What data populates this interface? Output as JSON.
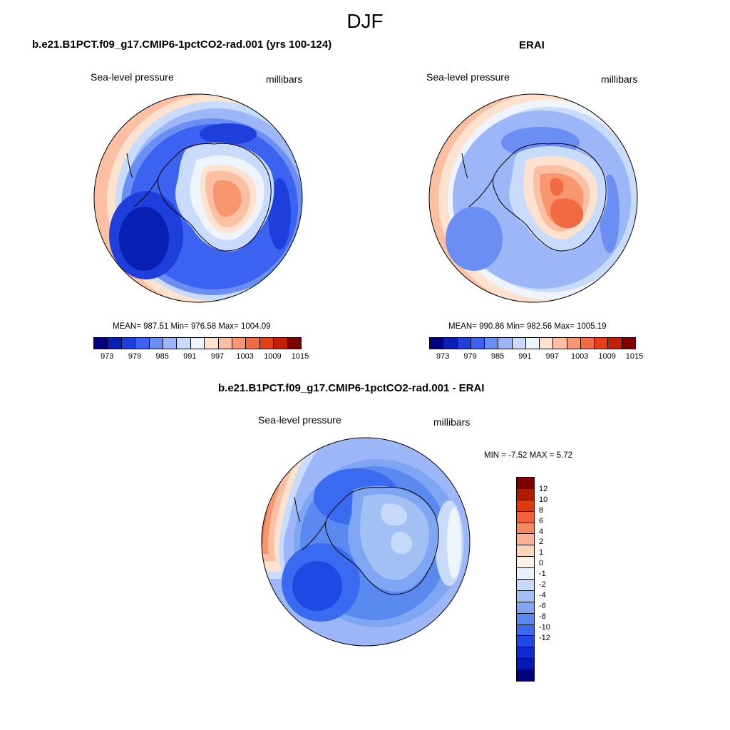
{
  "season": "DJF",
  "panels": [
    {
      "id": "model",
      "title": "b.e21.B1PCT.f09_g17.CMIP6-1pctCO2-rad.001 (yrs 100-124)",
      "left_label": "Sea-level pressure",
      "right_label": "millibars",
      "stats": "MEAN= 987.51  Min= 976.58  Max= 1004.09"
    },
    {
      "id": "obs",
      "title": "ERAI",
      "left_label": "Sea-level pressure",
      "right_label": "millibars",
      "stats": "MEAN= 990.86  Min= 982.56  Max= 1005.19"
    },
    {
      "id": "diff",
      "title": "b.e21.B1PCT.f09_g17.CMIP6-1pctCO2-rad.001 - ERAI",
      "left_label": "Sea-level pressure",
      "right_label": "millibars",
      "stats": "MIN =  -7.52 MAX =   5.72"
    }
  ],
  "abs_colorbar": {
    "colors": [
      "#00007f",
      "#0a1fb4",
      "#1f3fdc",
      "#3b62f0",
      "#6b8ef5",
      "#9cb6f7",
      "#c9dbfa",
      "#eef3fc",
      "#fde2cf",
      "#fbc0a3",
      "#f8966f",
      "#f26a41",
      "#e53e16",
      "#c41d08",
      "#7f0000"
    ],
    "labels": [
      "973",
      "979",
      "985",
      "991",
      "997",
      "1003",
      "1009",
      "1015"
    ]
  },
  "diff_colorbar": {
    "colors": [
      "#7f0000",
      "#b01c00",
      "#de3a0d",
      "#f26138",
      "#f78a62",
      "#fab092",
      "#fcd3bd",
      "#fdf0e6",
      "#e8f1fc",
      "#c6d9f8",
      "#a3c0f5",
      "#7ea6f2",
      "#5a8af0",
      "#3a6af0",
      "#1f48e4",
      "#0c2ad0",
      "#031bb0",
      "#00007f"
    ],
    "labels": [
      "12",
      "10",
      "8",
      "6",
      "4",
      "2",
      "1",
      "0",
      "-1",
      "-2",
      "-4",
      "-6",
      "-8",
      "-10",
      "-12"
    ]
  }
}
